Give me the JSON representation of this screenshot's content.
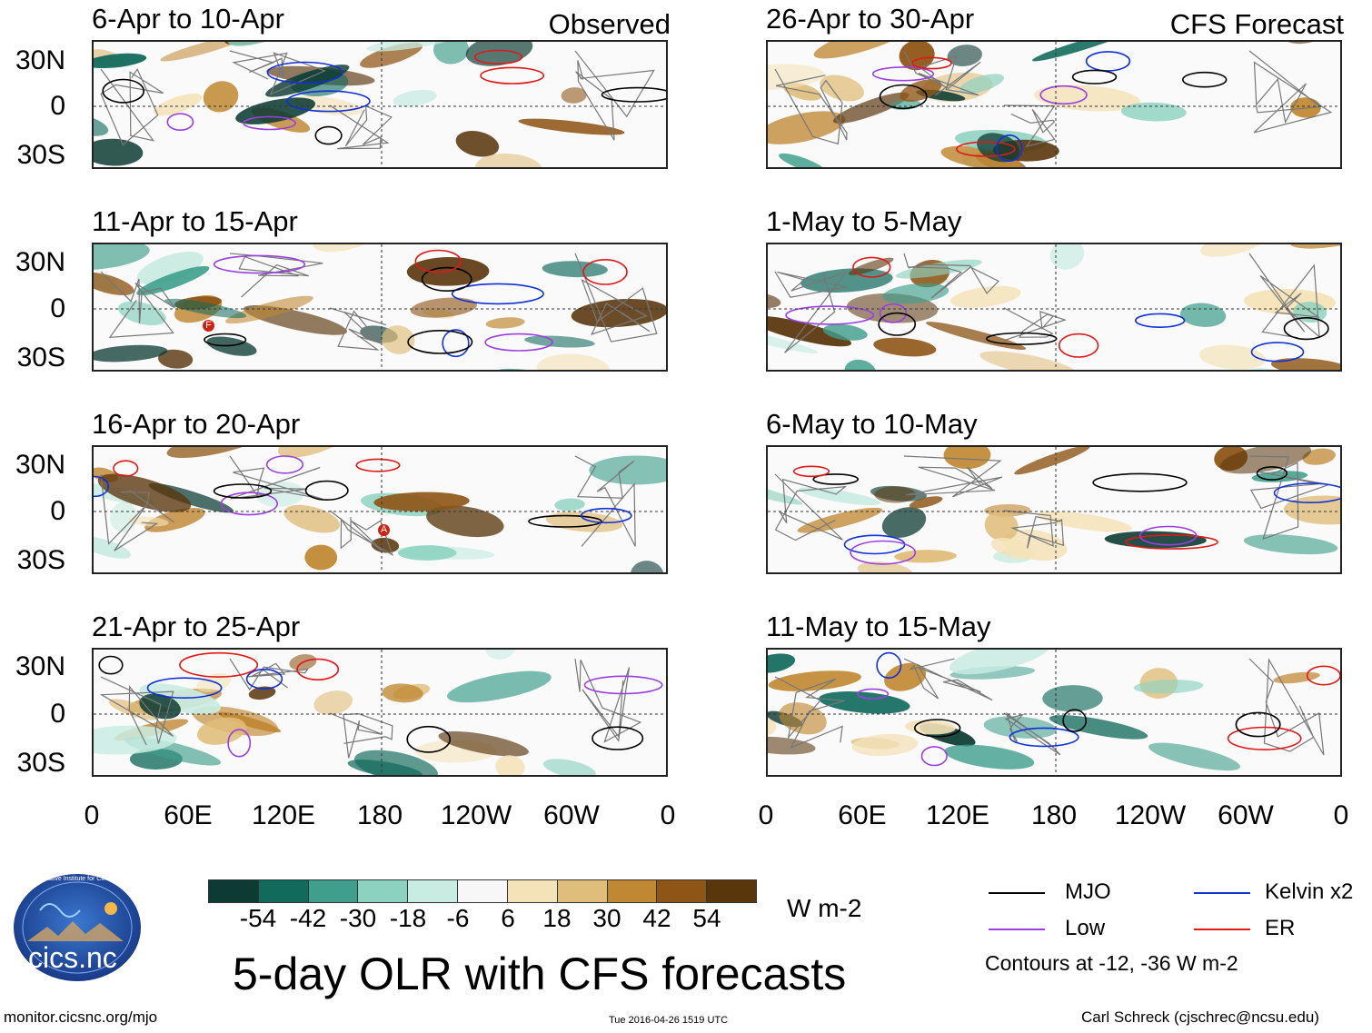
{
  "observed_label": "Observed",
  "forecast_label": "CFS Forecast",
  "latitude_labels": [
    "30N",
    "0",
    "30S"
  ],
  "longitude_labels": [
    "0",
    "60E",
    "120E",
    "180",
    "120W",
    "60W",
    "0"
  ],
  "panels_left": [
    {
      "title": "6-Apr to 10-Apr"
    },
    {
      "title": "11-Apr to 15-Apr"
    },
    {
      "title": "16-Apr to 20-Apr"
    },
    {
      "title": "21-Apr to 25-Apr"
    }
  ],
  "panels_right": [
    {
      "title": "26-Apr to 30-Apr"
    },
    {
      "title": "1-May to 5-May"
    },
    {
      "title": "6-May to 10-May"
    },
    {
      "title": "11-May to 15-May"
    }
  ],
  "map_annotations": [
    "F",
    "A"
  ],
  "colorbar": {
    "ticks": [
      "-54",
      "-42",
      "-30",
      "-18",
      "-6",
      "6",
      "18",
      "30",
      "42",
      "54"
    ],
    "colors": [
      "#0d3b33",
      "#116a5c",
      "#3f9e8c",
      "#8dd2c0",
      "#c9ece2",
      "#f7f7f7",
      "#f4e2b8",
      "#dfbd7a",
      "#c08833",
      "#8e5516",
      "#5a360d"
    ],
    "units": "W m-2"
  },
  "title": "5-day OLR with CFS forecasts",
  "legend": {
    "items": [
      {
        "label": "MJO",
        "color": "#000000"
      },
      {
        "label": "Kelvin x2",
        "color": "#1030d8"
      },
      {
        "label": "Low",
        "color": "#9a40e0"
      },
      {
        "label": "ER",
        "color": "#e01818"
      }
    ],
    "note": "Contours at -12, -36 W m-2"
  },
  "logo": {
    "text": "cics.nc",
    "ring_text": "Cooperative Institute for Climate and Satellites"
  },
  "footer": {
    "url": "monitor.cicsnc.org/mjo",
    "timestamp": "Tue 2016-04-26 1519 UTC",
    "author": "Carl Schreck (cjschrec@ncsu.edu)"
  }
}
